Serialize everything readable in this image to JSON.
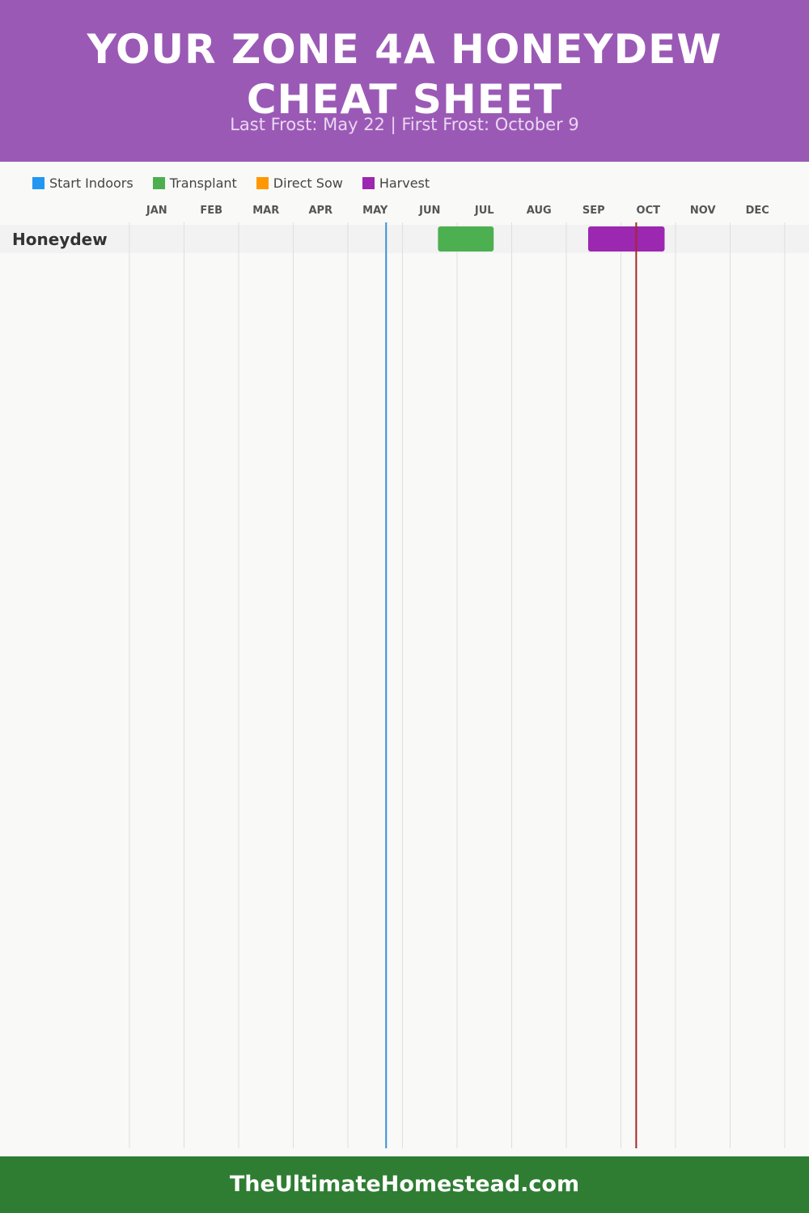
{
  "header": {
    "title_line1": "YOUR ZONE 4A HONEYDEW",
    "title_line2": "CHEAT SHEET",
    "subtitle": "Last Frost: May 22 | First Frost: October 9",
    "background_color": "#9b59b6"
  },
  "footer": {
    "text": "TheUltimateHomestead.com",
    "background_color": "#2e7d32"
  },
  "chart_data": {
    "type": "gantt",
    "title": "YOUR ZONE 4A HONEYDEW CHEAT SHEET",
    "subtitle": "Last Frost: May 22 | First Frost: October 9",
    "months": [
      "JAN",
      "FEB",
      "MAR",
      "APR",
      "MAY",
      "JUN",
      "JUL",
      "AUG",
      "SEP",
      "OCT",
      "NOV",
      "DEC"
    ],
    "legend": [
      {
        "name": "Start Indoors",
        "color": "#2196f3"
      },
      {
        "name": "Transplant",
        "color": "#4caf50"
      },
      {
        "name": "Direct Sow",
        "color": "#ff9800"
      },
      {
        "name": "Harvest",
        "color": "#9c27b0"
      }
    ],
    "legend_placement": "top-left",
    "grid": true,
    "frost_lines": [
      {
        "name": "Last Frost",
        "date": "May 22",
        "month_position": 4.7,
        "color": "#3a8fd6"
      },
      {
        "name": "First Frost",
        "date": "October 9",
        "month_position": 9.28,
        "color": "#a32828"
      }
    ],
    "rows": [
      {
        "crop": "Honeydew",
        "tasks": [
          {
            "type": "Transplant",
            "start_month": 5.65,
            "end_month": 6.67,
            "color": "#4caf50"
          },
          {
            "type": "Harvest",
            "start_month": 8.4,
            "end_month": 9.8,
            "color": "#9c27b0"
          }
        ]
      }
    ]
  }
}
